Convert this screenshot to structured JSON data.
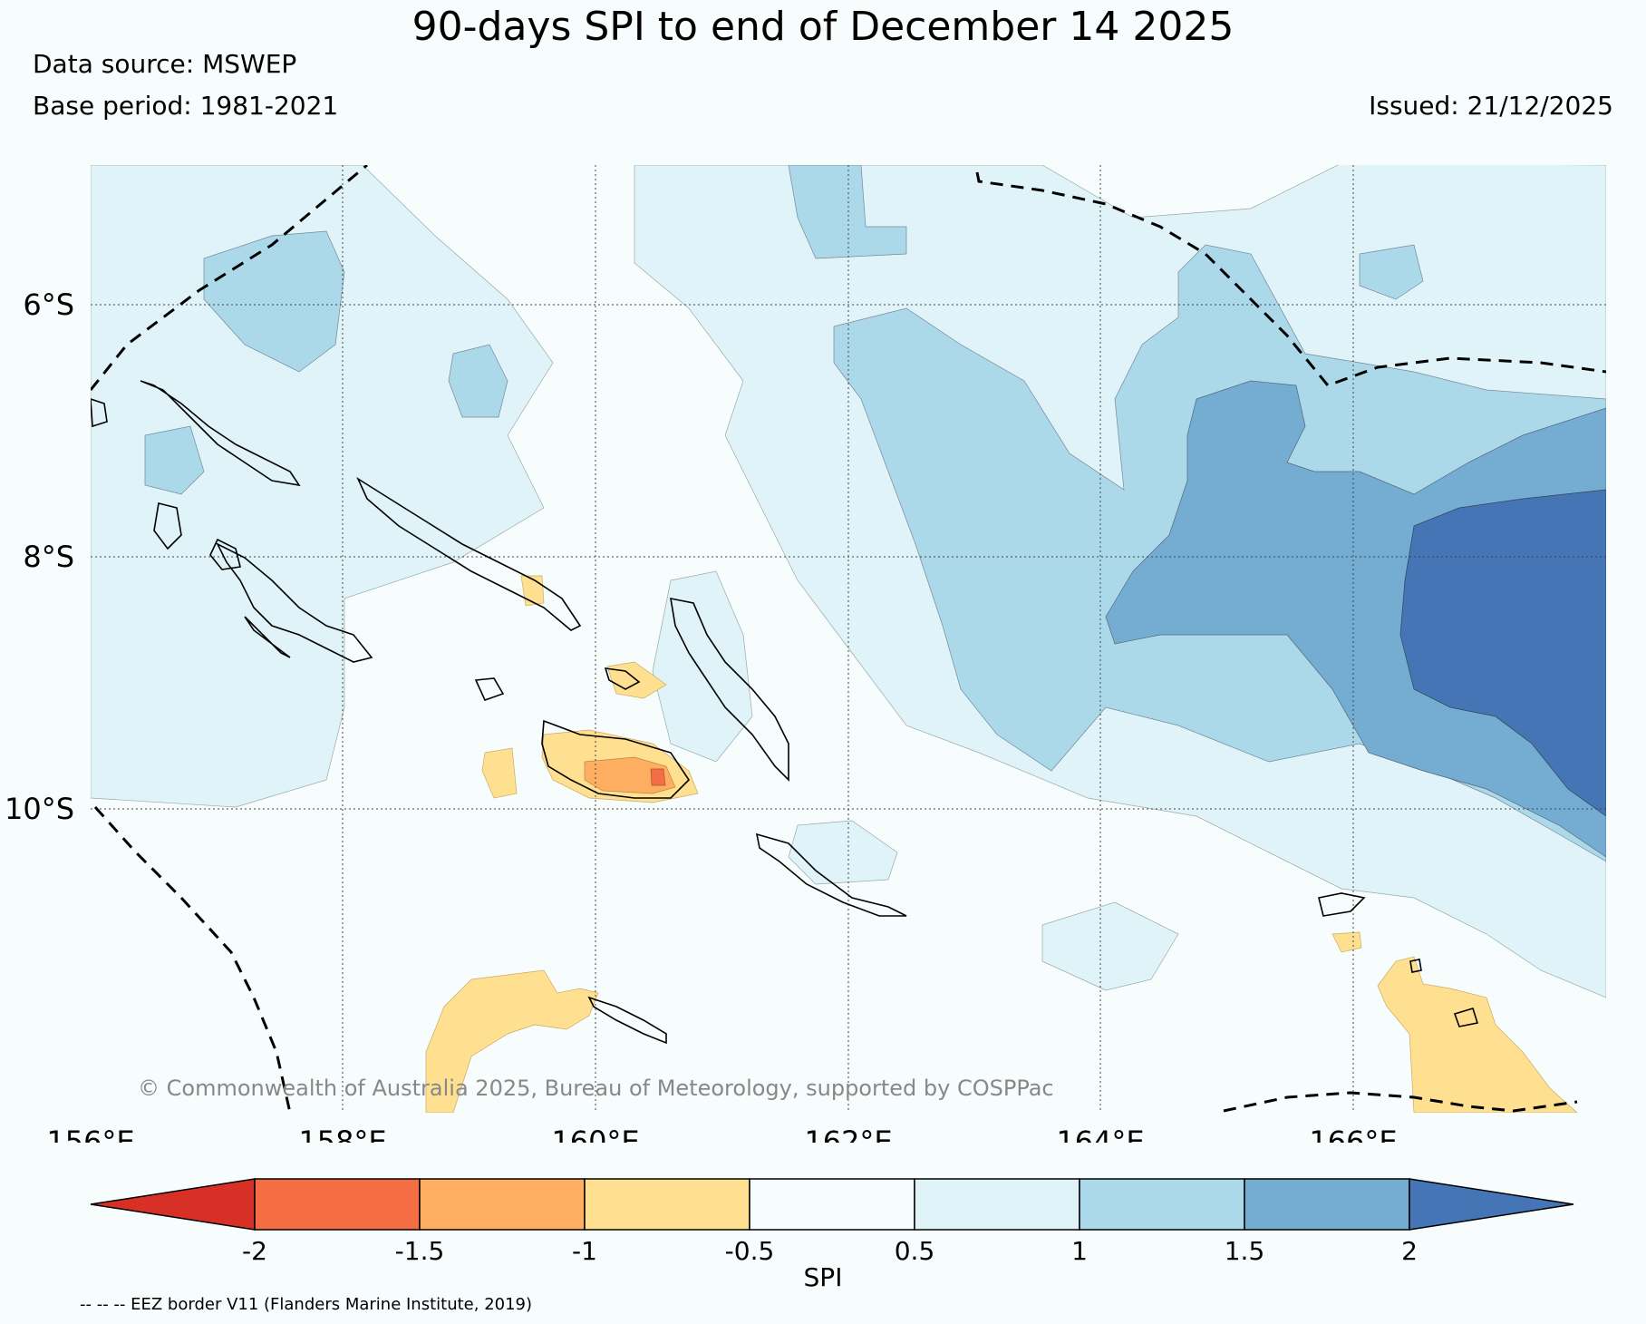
{
  "title": "90-days SPI to end of December 14 2025",
  "data_source": "Data source: MSWEP",
  "base_period": "Base period: 1981-2021",
  "issued": "Issued: 21/12/2025",
  "copyright": "© Commonwealth of Australia 2025, Bureau of Meteorology, supported by COSPPac",
  "eez_note": "-- -- -- EEZ border V11 (Flanders Marine Institute, 2019)",
  "map": {
    "lat_labels": [
      "6°S",
      "8°S",
      "10°S"
    ],
    "lon_labels": [
      "156°E",
      "158°E",
      "160°E",
      "162°E",
      "164°E",
      "166°E"
    ]
  },
  "colorbar": {
    "label": "SPI",
    "ticks": [
      "-2",
      "-1.5",
      "-1",
      "-0.5",
      "0.5",
      "1",
      "1.5",
      "2"
    ],
    "colors": [
      "#d73027",
      "#f46d43",
      "#fdae61",
      "#fee090",
      "#f7fcfd",
      "#e0f3f8",
      "#abd9e9",
      "#74add1",
      "#4575b4"
    ]
  },
  "legend_colors": {
    "water": "#f7fcfd",
    "land_outline": "#000000",
    "eez_border": "#000000"
  }
}
